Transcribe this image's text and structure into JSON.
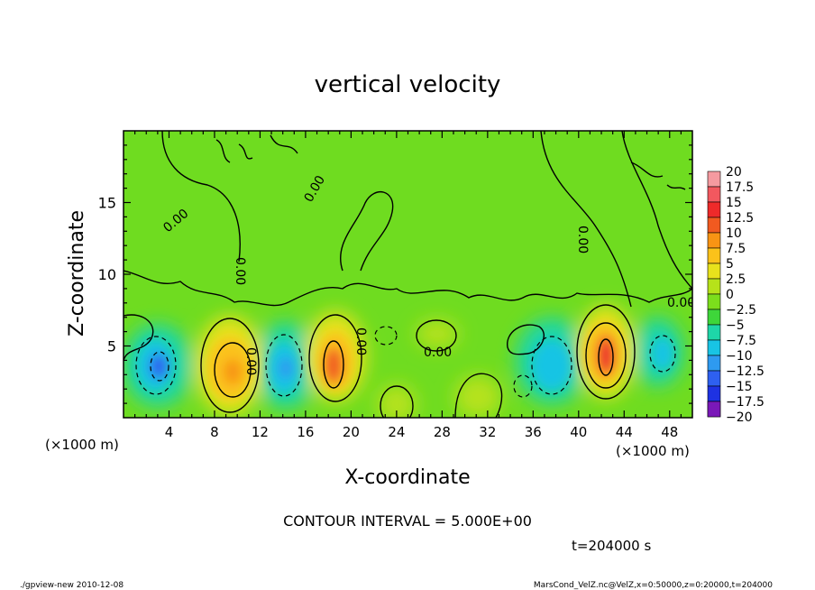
{
  "chart_data": {
    "type": "heatmap",
    "title": "vertical velocity",
    "xlabel": "X-coordinate",
    "ylabel": "Z-coordinate",
    "x_unit_left": "(×1000 m)",
    "x_unit_right": "(×1000 m)",
    "xlim": [
      0,
      50
    ],
    "ylim": [
      0,
      20
    ],
    "x_ticks": [
      4,
      8,
      12,
      16,
      20,
      24,
      28,
      32,
      36,
      40,
      44,
      48
    ],
    "y_ticks": [
      5,
      10,
      15
    ],
    "contour_interval_text": "CONTOUR INTERVAL = 5.000E+00",
    "time_text": "t=204000 s",
    "contour_labels": [
      "0.00",
      "0.00",
      "0.00",
      "0.00",
      "0.00",
      "0.00",
      "0.00",
      "0.00"
    ],
    "colorbar": {
      "labels": [
        "20",
        "17.5",
        "15",
        "12.5",
        "10",
        "7.5",
        "5",
        "2.5",
        "0",
        "-2.5",
        "-5",
        "-7.5",
        "-10",
        "-12.5",
        "-15",
        "-17.5",
        "-20"
      ],
      "colors": [
        "#f59aa0",
        "#f2585f",
        "#ee2a2a",
        "#f15a20",
        "#f89414",
        "#fbc21a",
        "#e8e21c",
        "#b6e21a",
        "#7cde1c",
        "#3ed63a",
        "#1ed6a8",
        "#18c4e4",
        "#2e9af0",
        "#2e60f0",
        "#1e32e2",
        "#1610b6",
        "#7a18b8"
      ]
    },
    "cells": [
      {
        "x": 3.5,
        "z": 3.2,
        "value": -12.5
      },
      {
        "x": 9.5,
        "z": 3.2,
        "value": 7.5
      },
      {
        "x": 14.5,
        "z": 3.2,
        "value": -10
      },
      {
        "x": 18.5,
        "z": 3.5,
        "value": 12.5
      },
      {
        "x": 24,
        "z": 1.5,
        "value": 5
      },
      {
        "x": 26,
        "z": 5.5,
        "value": 2.5
      },
      {
        "x": 31.5,
        "z": 1.5,
        "value": 2.5
      },
      {
        "x": 35.5,
        "z": 5,
        "value": 2.5
      },
      {
        "x": 37.5,
        "z": 3.5,
        "value": -7.5
      },
      {
        "x": 42.5,
        "z": 4.2,
        "value": 15
      },
      {
        "x": 46.5,
        "z": 4.5,
        "value": -7.5
      }
    ]
  },
  "footer": {
    "program": "./gpview-new  2010-12-08",
    "source": "MarsCond_VelZ.nc@VelZ,x=0:50000,z=0:20000,t=204000"
  }
}
